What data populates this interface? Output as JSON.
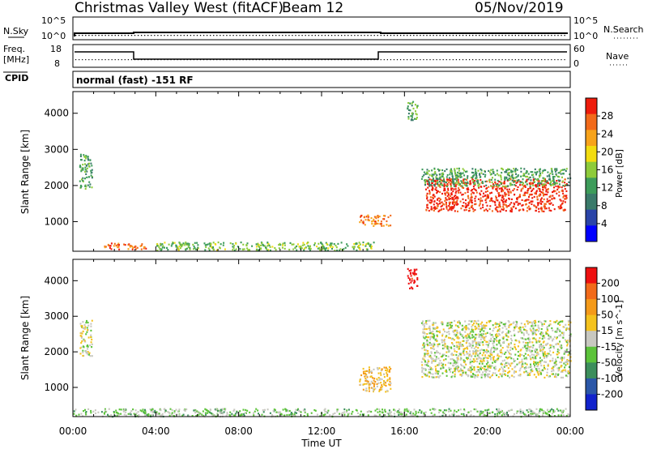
{
  "header": {
    "station": "Christmas Valley West (fitACF)",
    "beam": "Beam 12",
    "date": "05/Nov/2019"
  },
  "noise_panel": {
    "left_label": "N.Sky",
    "right_label": "N.Search",
    "tick_top_left": "10^5",
    "tick_bottom_left": "10^0",
    "tick_top_right": "10^5",
    "tick_bottom_right": "10^0"
  },
  "freq_panel": {
    "left_label_1": "Freq.",
    "left_label_2": "[MHz]",
    "right_label": "Nave",
    "ticks_left": [
      "18",
      "8"
    ],
    "ticks_right": [
      "60",
      "0"
    ]
  },
  "cpid": {
    "label": "CPID",
    "text": "normal (fast) -151 RF"
  },
  "power_panel": {
    "ylabel": "Slant Range [km]",
    "yticks": [
      "4000",
      "3000",
      "2000",
      "1000"
    ],
    "colorbar_label": "Power [dB]",
    "colorbar_ticks": [
      "28",
      "24",
      "20",
      "16",
      "12",
      "8",
      "4"
    ],
    "colors": [
      "#0000ff",
      "#2a44a8",
      "#3a7a6a",
      "#3d9c5a",
      "#8ecb3a",
      "#f2dc10",
      "#f7a31b",
      "#f26a1a",
      "#ee1c0c"
    ]
  },
  "velocity_panel": {
    "ylabel": "Slant Range [km]",
    "yticks": [
      "4000",
      "3000",
      "2000",
      "1000"
    ],
    "colorbar_label": "Velocity [m s^-1]",
    "colorbar_ticks": [
      "200",
      "100",
      "50",
      "15",
      "-15",
      "-50",
      "-100",
      "-200"
    ],
    "colors": [
      "#1122cc",
      "#2b57a8",
      "#3c8e5c",
      "#5cc33a",
      "#c8c8c0",
      "#f4c21e",
      "#f49a1a",
      "#f26a1a",
      "#ee1010"
    ]
  },
  "x_axis": {
    "label": "Time UT",
    "ticks": [
      "00:00",
      "04:00",
      "08:00",
      "12:00",
      "16:00",
      "20:00",
      "00:00"
    ]
  },
  "chart_data": [
    {
      "type": "heatmap",
      "title": "Power",
      "xlabel": "Time UT",
      "ylabel": "Slant Range [km]",
      "xlim_hours": [
        0,
        24
      ],
      "ylim_km": [
        180,
        4600
      ],
      "clim_db": [
        0,
        30
      ],
      "regions": [
        {
          "t0": 0.3,
          "t1": 0.9,
          "r0": 1900,
          "r1": 2900,
          "value": 12
        },
        {
          "t0": 1.5,
          "t1": 3.5,
          "r0": 250,
          "r1": 420,
          "value": 26
        },
        {
          "t0": 4.0,
          "t1": 14.5,
          "r0": 220,
          "r1": 450,
          "value": 14
        },
        {
          "t0": 13.8,
          "t1": 15.3,
          "r0": 900,
          "r1": 1200,
          "value": 24
        },
        {
          "t0": 16.1,
          "t1": 16.6,
          "r0": 3800,
          "r1": 4350,
          "value": 12
        },
        {
          "t0": 17.0,
          "t1": 23.8,
          "r0": 1300,
          "r1": 2200,
          "value": 28
        },
        {
          "t0": 16.8,
          "t1": 24.0,
          "r0": 2000,
          "r1": 2500,
          "value": 12
        }
      ]
    },
    {
      "type": "heatmap",
      "title": "Velocity",
      "xlabel": "Time UT",
      "ylabel": "Slant Range [km]",
      "xlim_hours": [
        0,
        24
      ],
      "ylim_km": [
        180,
        4600
      ],
      "clim_ms": [
        -200,
        200
      ],
      "regions": [
        {
          "t0": 0.3,
          "t1": 0.9,
          "r0": 1900,
          "r1": 2900,
          "value": 0
        },
        {
          "t0": 0.0,
          "t1": 24.0,
          "r0": 200,
          "r1": 420,
          "value": -30
        },
        {
          "t0": 13.8,
          "t1": 15.3,
          "r0": 900,
          "r1": 1600,
          "value": 50
        },
        {
          "t0": 16.1,
          "t1": 16.6,
          "r0": 3800,
          "r1": 4400,
          "value": 200
        },
        {
          "t0": 16.8,
          "t1": 24.0,
          "r0": 1300,
          "r1": 2900,
          "value": 0
        }
      ]
    }
  ]
}
